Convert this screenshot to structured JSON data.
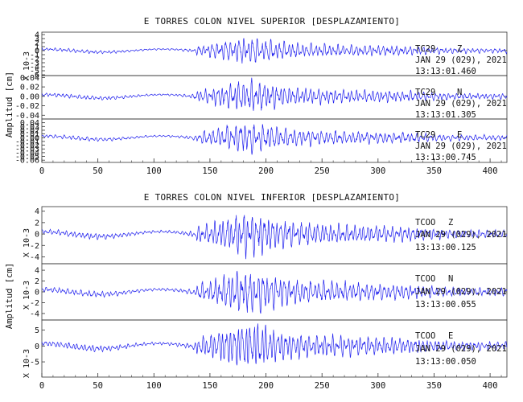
{
  "colors": {
    "trace": "#2222ee",
    "axis": "#333333",
    "text": "#111111"
  },
  "chart_data": [
    {
      "type": "line",
      "title": "E TORRES COLON NIVEL SUPERIOR [DESPLAZAMIENTO]",
      "ylabel": "Amplitud [cm]",
      "xlim": [
        0,
        415
      ],
      "x_ticks": [
        0,
        50,
        100,
        150,
        200,
        250,
        300,
        350,
        400
      ],
      "grid": false,
      "panels": [
        {
          "station": "TC29",
          "component": "Z",
          "date": "JAN 29 (029), 2021",
          "time": "13:13:01.460",
          "scale_label": "X 10-3",
          "ylim": [
            -6.2,
            4.6
          ],
          "y_ticks": [
            4,
            3,
            2,
            1,
            0,
            -1,
            -2,
            -3,
            -4,
            -5,
            -6
          ],
          "y_tick_labels": [
            "4",
            "3",
            "2",
            "1",
            "0",
            "-1",
            "-2",
            "-3",
            "-4",
            "-5",
            "-6"
          ],
          "amplitude": 3.4,
          "seed": 11
        },
        {
          "station": "TC29",
          "component": "N",
          "date": "JAN 29 (029), 2021",
          "time": "13:13:01.305",
          "scale_label": "",
          "ylim": [
            -0.048,
            0.044
          ],
          "y_ticks": [
            0.04,
            0.02,
            0.0,
            -0.02,
            -0.04
          ],
          "y_tick_labels": [
            "0.04",
            "0.02",
            "0.00",
            "-0.02",
            "-0.04"
          ],
          "amplitude": 0.034,
          "seed": 23
        },
        {
          "station": "TC29",
          "component": "E",
          "date": "JAN 29 (029), 2021",
          "time": "13:13:00.745",
          "scale_label": "",
          "ylim": [
            -0.066,
            0.05
          ],
          "y_ticks": [
            0.04,
            0.03,
            0.02,
            0.01,
            0.0,
            -0.01,
            -0.02,
            -0.03,
            -0.04,
            -0.05,
            -0.06
          ],
          "y_tick_labels": [
            "0.04",
            "0.03",
            "0.02",
            "0.01",
            "0.00",
            "-0.01",
            "-0.02",
            "-0.03",
            "-0.04",
            "-0.05",
            "-0.06"
          ],
          "amplitude": 0.042,
          "seed": 37
        }
      ]
    },
    {
      "type": "line",
      "title": "E TORRES COLON NIVEL INFERIOR [DESPLAZAMIENTO]",
      "ylabel": "Amplitud [cm]",
      "xlim": [
        0,
        415
      ],
      "x_ticks": [
        0,
        50,
        100,
        150,
        200,
        250,
        300,
        350,
        400
      ],
      "grid": false,
      "panels": [
        {
          "station": "TCOO",
          "component": "Z",
          "date": "JAN 29 (029), 2021",
          "time": "13:13:00.125",
          "scale_label": "X 10-3",
          "ylim": [
            -5.2,
            4.8
          ],
          "y_ticks": [
            4,
            2,
            0,
            -2,
            -4
          ],
          "y_tick_labels": [
            "4",
            "2",
            "0",
            "-2",
            "-4"
          ],
          "amplitude": 3.9,
          "seed": 53
        },
        {
          "station": "TCOO",
          "component": "N",
          "date": "JAN 29 (029), 2021",
          "time": "13:13:00.055",
          "scale_label": "X 10-3",
          "ylim": [
            -5.2,
            5.2
          ],
          "y_ticks": [
            4,
            2,
            0,
            -2,
            -4
          ],
          "y_tick_labels": [
            "4",
            "2",
            "0",
            "-2",
            "-4"
          ],
          "amplitude": 4.2,
          "seed": 71
        },
        {
          "station": "TCOO",
          "component": "E",
          "date": "JAN 29 (029), 2021",
          "time": "13:13:00.050",
          "scale_label": "X 10-3",
          "ylim": [
            -9.8,
            8.2
          ],
          "y_ticks": [
            5,
            0,
            -5
          ],
          "y_tick_labels": [
            "5",
            "0",
            "-5"
          ],
          "amplitude": 7.6,
          "seed": 89
        }
      ]
    }
  ]
}
